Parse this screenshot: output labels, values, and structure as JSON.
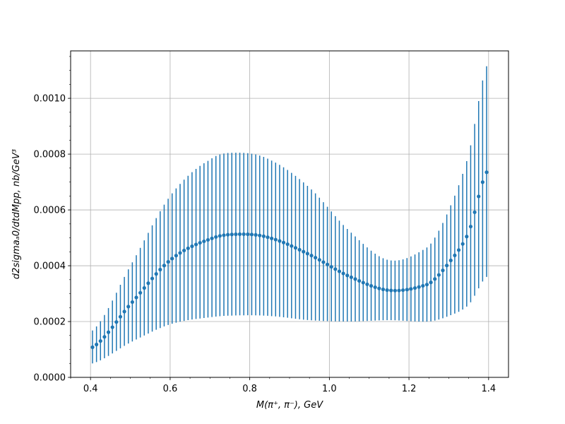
{
  "chart_data": {
    "type": "scatter",
    "title": "",
    "xlabel": "M(π⁺, π⁻), GeV",
    "ylabel": "d2sigmaₐ0/dtdMpp, nb/GeV³",
    "xlim": [
      0.35,
      1.45
    ],
    "ylim": [
      0.0,
      0.00117
    ],
    "grid": true,
    "x_ticks": [
      {
        "value": 0.4,
        "label": "0.4"
      },
      {
        "value": 0.6,
        "label": "0.6"
      },
      {
        "value": 0.8,
        "label": "0.8"
      },
      {
        "value": 1.0,
        "label": "1.0"
      },
      {
        "value": 1.2,
        "label": "1.2"
      },
      {
        "value": 1.4,
        "label": "1.4"
      }
    ],
    "y_ticks": [
      {
        "value": 0.0,
        "label": "0.0000"
      },
      {
        "value": 0.0002,
        "label": "0.0002"
      },
      {
        "value": 0.0004,
        "label": "0.0004"
      },
      {
        "value": 0.0006,
        "label": "0.0006"
      },
      {
        "value": 0.0008,
        "label": "0.0008"
      },
      {
        "value": 0.001,
        "label": "0.0010"
      }
    ],
    "series": [
      {
        "color": "#1f77b4",
        "marker": "circle",
        "errorbars": true,
        "x_range": [
          0.405,
          1.395
        ],
        "n_points": 100,
        "key_points": [
          {
            "x": 0.405,
            "y": 0.000108,
            "lo": 5e-05,
            "hi": 0.000168
          },
          {
            "x": 0.5,
            "y": 0.000262,
            "lo": 0.000125,
            "hi": 0.0004
          },
          {
            "x": 0.6,
            "y": 0.00042,
            "lo": 0.00019,
            "hi": 0.00065
          },
          {
            "x": 0.7,
            "y": 0.000495,
            "lo": 0.000215,
            "hi": 0.00078
          },
          {
            "x": 0.77,
            "y": 0.000513,
            "lo": 0.000222,
            "hi": 0.000805
          },
          {
            "x": 0.85,
            "y": 0.0005,
            "lo": 0.00022,
            "hi": 0.00078
          },
          {
            "x": 0.95,
            "y": 0.00044,
            "lo": 0.000205,
            "hi": 0.00068
          },
          {
            "x": 1.05,
            "y": 0.000362,
            "lo": 0.0002,
            "hi": 0.000525
          },
          {
            "x": 1.15,
            "y": 0.000312,
            "lo": 0.000205,
            "hi": 0.00042
          },
          {
            "x": 1.25,
            "y": 0.000335,
            "lo": 0.0002,
            "hi": 0.00047
          },
          {
            "x": 1.3,
            "y": 0.00041,
            "lo": 0.00022,
            "hi": 0.0006
          },
          {
            "x": 1.35,
            "y": 0.00052,
            "lo": 0.00026,
            "hi": 0.0008
          },
          {
            "x": 1.395,
            "y": 0.000735,
            "lo": 0.00036,
            "hi": 0.001115
          }
        ]
      }
    ]
  }
}
